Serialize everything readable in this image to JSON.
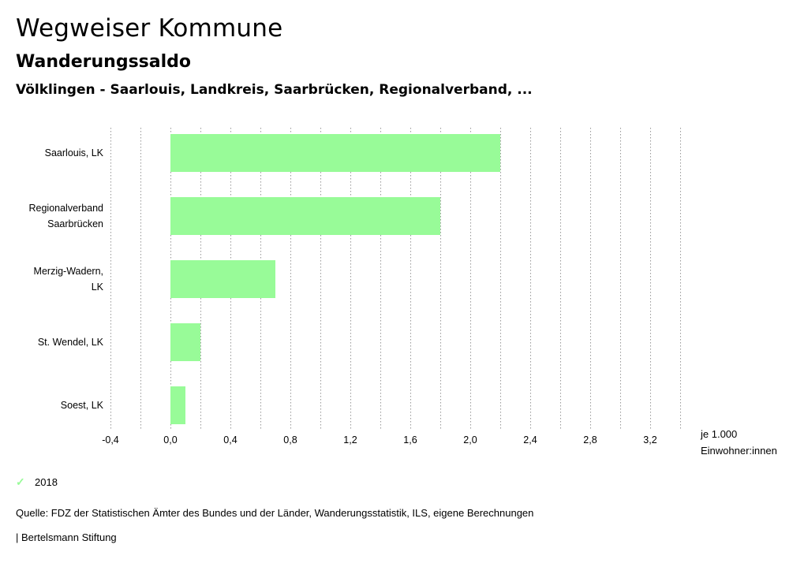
{
  "header": {
    "title": "Wegweiser Kommune",
    "subtitle": "Wanderungssaldo",
    "regions": "Völklingen - Saarlouis, Landkreis, Saarbrücken, Regionalverband, ..."
  },
  "unit": {
    "line1": "je 1.000",
    "line2": "Einwohner:innen"
  },
  "legend": {
    "icon": "check-icon",
    "label": "2018"
  },
  "footer": {
    "source": "Quelle: FDZ der Statistischen Ämter des Bundes und der Länder, Wanderungsstatistik, ILS, eigene Berechnungen",
    "credit": "| Bertelsmann Stiftung"
  },
  "colors": {
    "bar": "#98FB98",
    "grid": "#999999"
  },
  "chart_data": {
    "type": "bar",
    "orientation": "horizontal",
    "categories": [
      [
        "Saarlouis, LK"
      ],
      [
        "Regionalverband",
        "Saarbrücken"
      ],
      [
        "Merzig-Wadern,",
        "LK"
      ],
      [
        "St. Wendel, LK"
      ],
      [
        "Soest, LK"
      ]
    ],
    "series": [
      {
        "name": "2018",
        "values": [
          2.2,
          1.8,
          0.7,
          0.2,
          0.1
        ]
      }
    ],
    "xlim": [
      -0.4,
      3.4
    ],
    "xticks": [
      -0.4,
      0.0,
      0.4,
      0.8,
      1.2,
      1.6,
      2.0,
      2.4,
      2.8,
      3.2
    ],
    "xtick_labels": [
      "-0,4",
      "0,0",
      "0,4",
      "0,8",
      "1,2",
      "1,6",
      "2,0",
      "2,4",
      "2,8",
      "3,2"
    ],
    "grid": true,
    "legend_position": "bottom-left"
  }
}
